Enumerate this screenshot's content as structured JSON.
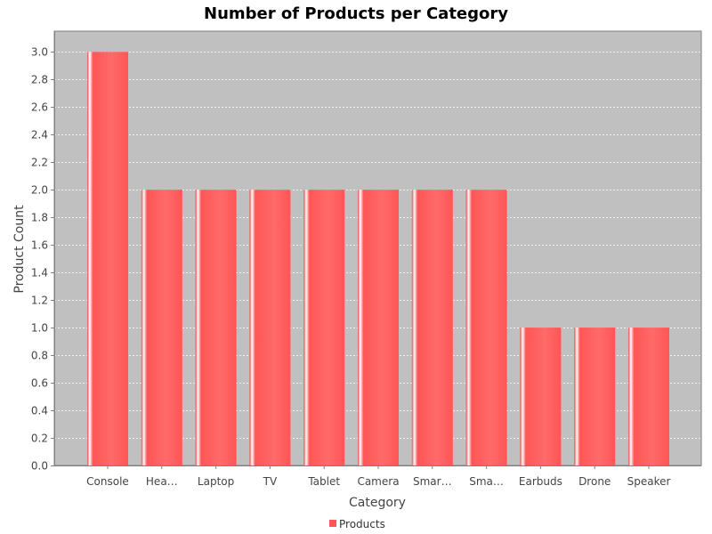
{
  "chart_data": {
    "type": "bar",
    "title": "Number of Products per Category",
    "xlabel": "Category",
    "ylabel": "Product Count",
    "categories": [
      "Console",
      "Hea…",
      "Laptop",
      "TV",
      "Tablet",
      "Camera",
      "Smar…",
      "Sma…",
      "Earbuds",
      "Drone",
      "Speaker"
    ],
    "series": [
      {
        "name": "Products",
        "values": [
          3,
          2,
          2,
          2,
          2,
          2,
          2,
          2,
          1,
          1,
          1
        ],
        "color": "#ff5555"
      }
    ],
    "ylim": [
      0,
      3.15
    ],
    "yticks": [
      "0.0",
      "0.2",
      "0.4",
      "0.6",
      "0.8",
      "1.0",
      "1.2",
      "1.4",
      "1.6",
      "1.8",
      "2.0",
      "2.2",
      "2.4",
      "2.6",
      "2.8",
      "3.0"
    ],
    "grid": true,
    "legend_position": "bottom",
    "plot_background": "#c0c0c0"
  }
}
